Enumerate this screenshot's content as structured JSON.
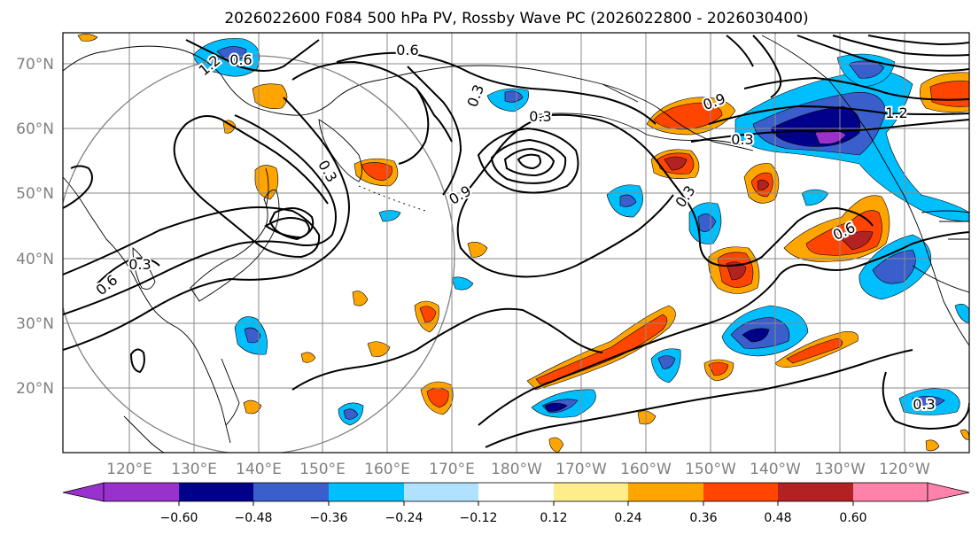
{
  "title": "2026022600 F084 500 hPa PV, Rossby Wave PC (2026022800 - 2026030400)",
  "lat_labels": [
    "70°N",
    "60°N",
    "50°N",
    "40°N",
    "30°N",
    "20°N"
  ],
  "lon_labels": [
    "120°E",
    "130°E",
    "140°E",
    "150°E",
    "160°E",
    "170°E",
    "180°W",
    "170°W",
    "160°W",
    "150°W",
    "140°W",
    "130°W",
    "120°W"
  ],
  "colorbar": {
    "colors": [
      "#9932cc",
      "#00008b",
      "#3a5fcd",
      "#00bfff",
      "#b0e2ff",
      "#ffffff",
      "#ffec8b",
      "#ffa500",
      "#ff4500",
      "#b22222",
      "#ff82ab"
    ],
    "tick_labels": [
      "−0.60",
      "−0.48",
      "−0.36",
      "−0.24",
      "−0.12",
      "0.12",
      "0.24",
      "0.36",
      "0.48",
      "0.60"
    ]
  },
  "contour_labels": [
    "0.6",
    "0.3",
    "0.9",
    "1.2",
    "0.3",
    "0.6",
    "0.3",
    "0.9",
    "0.6",
    "0.3",
    "0.6",
    "0.3",
    "0.3",
    "1.2",
    "0.3"
  ],
  "chart_data": {
    "type": "map",
    "title": "2026022600 F084 500 hPa PV, Rossby Wave PC (2026022800 - 2026030400)",
    "field": "500 hPa PV (contours) and Rossby Wave PC (shaded)",
    "lon_range": [
      110,
      245
    ],
    "lat_range": [
      10,
      75
    ],
    "colorbar_levels": [
      -0.6,
      -0.48,
      -0.36,
      -0.24,
      -0.12,
      0.12,
      0.24,
      0.36,
      0.48,
      0.6
    ],
    "contour_levels_labeled": [
      0.3,
      0.6,
      0.9,
      1.2
    ]
  }
}
